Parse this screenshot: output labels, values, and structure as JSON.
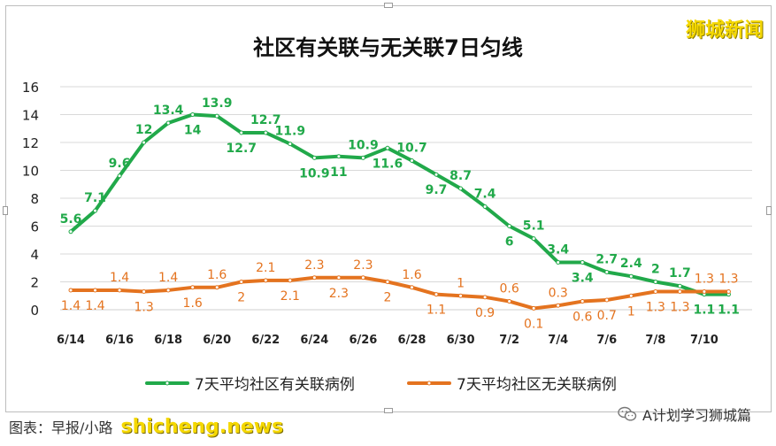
{
  "title": "社区有关联与无关联7日匀线",
  "brand": "狮城新闻",
  "footer": {
    "source": "图表：早报/小路",
    "site": "shicheng.news",
    "wechat": "A计划学习狮城篇"
  },
  "colors": {
    "linked": "#21a94a",
    "unlinked": "#e4731f",
    "grid": "#d9d9d9"
  },
  "chart_data": {
    "type": "line",
    "title": "社区有关联与无关联7日匀线",
    "ylim": [
      0,
      16
    ],
    "yticks": [
      0,
      2,
      4,
      6,
      8,
      10,
      12,
      14,
      16
    ],
    "x": [
      "6/14",
      "6/15",
      "6/16",
      "6/17",
      "6/18",
      "6/19",
      "6/20",
      "6/21",
      "6/22",
      "6/23",
      "6/24",
      "6/25",
      "6/26",
      "6/27",
      "6/28",
      "6/29",
      "6/30",
      "7/1",
      "7/2",
      "7/3",
      "7/4",
      "7/5",
      "7/6",
      "7/7",
      "7/8",
      "7/9",
      "7/10",
      "7/11"
    ],
    "xtick_labels": [
      "6/14",
      "6/16",
      "6/18",
      "6/20",
      "6/22",
      "6/24",
      "6/26",
      "6/28",
      "6/30",
      "7/2",
      "7/4",
      "7/6",
      "7/8",
      "7/10"
    ],
    "legend_position": "bottom",
    "grid": "horizontal",
    "series": [
      {
        "name": "7天平均社区有关联病例",
        "values": [
          5.6,
          7.1,
          9.6,
          12,
          13.4,
          14,
          13.9,
          12.7,
          12.7,
          11.9,
          10.9,
          11,
          10.9,
          11.6,
          10.7,
          9.7,
          8.7,
          7.4,
          6,
          5.1,
          3.4,
          3.4,
          2.7,
          2.4,
          2,
          1.7,
          1.1,
          1.1
        ]
      },
      {
        "name": "7天平均社区无关联病例",
        "values": [
          1.4,
          1.4,
          1.4,
          1.3,
          1.4,
          1.6,
          1.6,
          2,
          2.1,
          2.1,
          2.3,
          2.3,
          2.3,
          2,
          1.6,
          1.1,
          1,
          0.9,
          0.6,
          0.1,
          0.3,
          0.6,
          0.7,
          1,
          1.3,
          1.3,
          1.3,
          1.3
        ]
      }
    ],
    "data_labels": {
      "linked_above": [
        0,
        1,
        2,
        3,
        4,
        6,
        8,
        9,
        12,
        14,
        16,
        17,
        19,
        20,
        22,
        23,
        24,
        25
      ],
      "unlinked_above": [
        2,
        4,
        6,
        8,
        10,
        12,
        14,
        16,
        18,
        20,
        26,
        27
      ]
    }
  }
}
